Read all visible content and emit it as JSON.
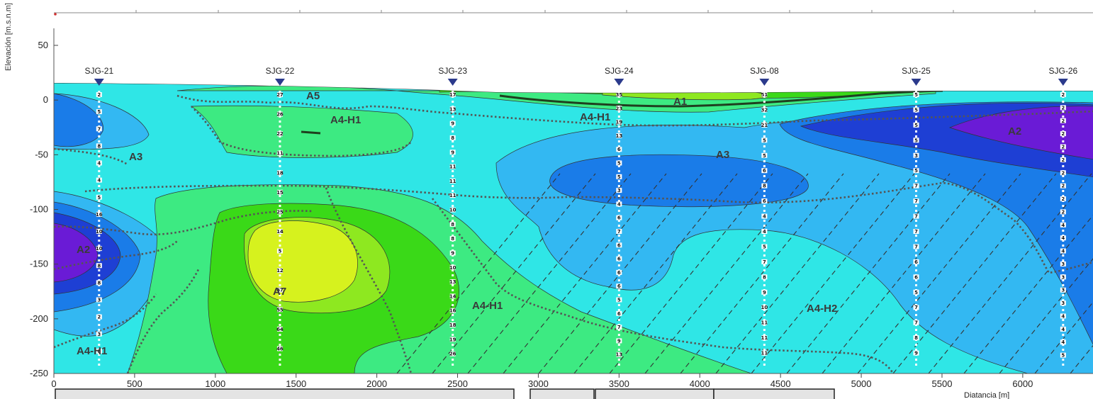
{
  "chart_data": {
    "type": "heatmap",
    "title": "",
    "xlabel": "Diatancia [m]",
    "ylabel": "Elevación [m.s.n.m]",
    "xlim": [
      0,
      6400
    ],
    "ylim": [
      -250,
      80
    ],
    "x_ticks": [
      0,
      500,
      1000,
      1500,
      2000,
      2500,
      3000,
      3500,
      4000,
      4500,
      5000,
      5500,
      6000
    ],
    "y_ticks": [
      50,
      0,
      -50,
      -100,
      -150,
      -200,
      -250
    ],
    "wells": [
      {
        "name": "SJG-21",
        "x": 280,
        "values": [
          "2",
          "5",
          "7",
          "8",
          "4",
          "4",
          "5",
          "16",
          "10",
          "10",
          "8",
          "8",
          "3",
          "2",
          "3",
          "6"
        ]
      },
      {
        "name": "SJG-22",
        "x": 1400,
        "values": [
          "27",
          "26",
          "22",
          "11",
          "18",
          "15",
          "25",
          "14",
          "5",
          "12",
          "67",
          "55",
          "64",
          "46"
        ]
      },
      {
        "name": "SJG-23",
        "x": 2470,
        "values": [
          "17",
          "13",
          "9",
          "8",
          "9",
          "11",
          "11",
          "11",
          "10",
          "8",
          "8",
          "9",
          "10",
          "13",
          "14",
          "16",
          "18",
          "19",
          "26"
        ]
      },
      {
        "name": "SJG-24",
        "x": 3500,
        "values": [
          "35",
          "23",
          "19",
          "13",
          "6",
          "5",
          "5",
          "3",
          "4",
          "6",
          "7",
          "6",
          "6",
          "6",
          "6",
          "5",
          "6",
          "7",
          "9",
          "13"
        ]
      },
      {
        "name": "SJG-08",
        "x": 4400,
        "values": [
          "51",
          "32",
          "21",
          "5",
          "5",
          "6",
          "8",
          "6",
          "4",
          "4",
          "5",
          "7",
          "8",
          "9",
          "10",
          "11",
          "11",
          "11"
        ]
      },
      {
        "name": "SJG-25",
        "x": 5340,
        "values": [
          "5",
          "5",
          "5",
          "5",
          "3",
          "5",
          "7",
          "7",
          "7",
          "7",
          "7",
          "6",
          "6",
          "5",
          "7",
          "7",
          "8",
          "9"
        ]
      },
      {
        "name": "SJG-26",
        "x": 6250,
        "values": [
          "2",
          "2",
          "2",
          "2",
          "2",
          "2",
          "2",
          "2",
          "2",
          "2",
          "4",
          "4",
          "4",
          "3",
          "3",
          "3",
          "3",
          "4",
          "4",
          "4",
          "5"
        ]
      }
    ],
    "zones": [
      "A1",
      "A2",
      "A2",
      "A3",
      "A3",
      "A4-H1",
      "A4-H1",
      "A4-H1",
      "A4-H1",
      "A4-H2",
      "A5",
      "A7"
    ],
    "color_scale": [
      "#6a1bd6",
      "#1e3fd4",
      "#1a7ce8",
      "#33b8f2",
      "#2fe6e6",
      "#3dea82",
      "#3ad918",
      "#8ee820",
      "#d6f21e"
    ]
  }
}
